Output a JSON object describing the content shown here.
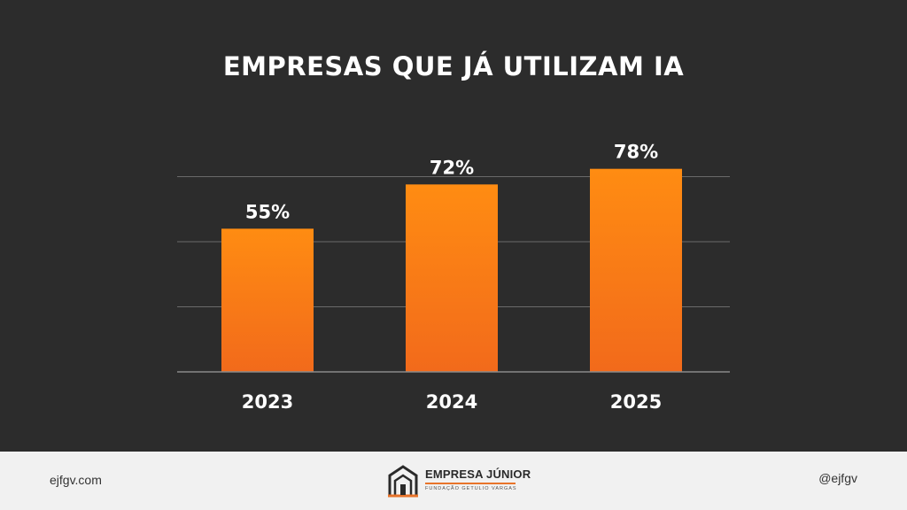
{
  "slide": {
    "title": "EMPRESAS QUE JÁ UTILIZAM IA"
  },
  "chart_data": {
    "type": "bar",
    "title": "EMPRESAS QUE JÁ UTILIZAM IA",
    "categories": [
      "2023",
      "2024",
      "2025"
    ],
    "values": [
      55,
      72,
      78
    ],
    "value_labels": [
      "55%",
      "72%",
      "78%"
    ],
    "ylim": [
      0,
      100
    ],
    "grid": true,
    "bar_color_top": "#ff8c12",
    "bar_color_bottom": "#f26a1b"
  },
  "footer": {
    "site": "ejfgv.com",
    "handle": "@ejfgv",
    "logo_name": "EMPRESA JÚNIOR",
    "logo_sub": "FUNDAÇÃO GETULIO VARGAS",
    "logo_accent": "#e8742a"
  }
}
